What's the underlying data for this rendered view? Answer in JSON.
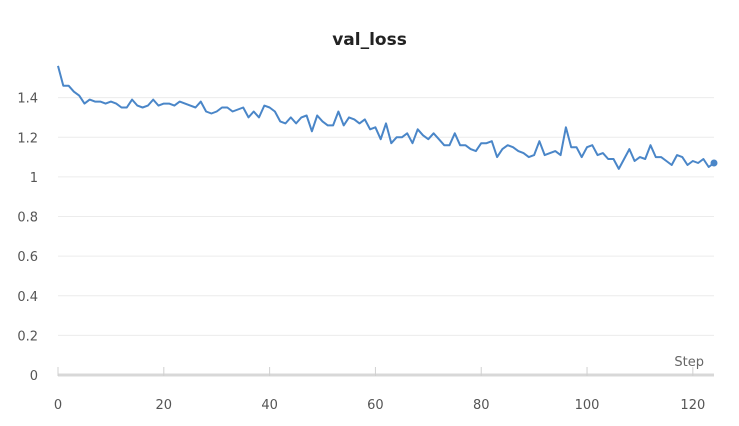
{
  "chart_data": {
    "type": "line",
    "title": "val_loss",
    "xlabel": "Step",
    "ylabel": "",
    "xlim": [
      0,
      124
    ],
    "ylim": [
      0,
      1.6
    ],
    "x_ticks": [
      "0",
      "20",
      "40",
      "60",
      "80",
      "100",
      "120"
    ],
    "y_ticks": [
      "0",
      "0.2",
      "0.4",
      "0.6",
      "0.8",
      "1",
      "1.2",
      "1.4"
    ],
    "x_tick_values": [
      0,
      20,
      40,
      60,
      80,
      100,
      120
    ],
    "y_tick_values": [
      0,
      0.2,
      0.4,
      0.6,
      0.8,
      1.0,
      1.2,
      1.4
    ],
    "grid": true,
    "series": [
      {
        "color": "#4a86c8",
        "x": [
          0,
          1,
          2,
          3,
          4,
          5,
          6,
          7,
          8,
          9,
          10,
          11,
          12,
          13,
          14,
          15,
          16,
          17,
          18,
          19,
          20,
          21,
          22,
          23,
          24,
          25,
          26,
          27,
          28,
          29,
          30,
          31,
          32,
          33,
          34,
          35,
          36,
          37,
          38,
          39,
          40,
          41,
          42,
          43,
          44,
          45,
          46,
          47,
          48,
          49,
          50,
          51,
          52,
          53,
          54,
          55,
          56,
          57,
          58,
          59,
          60,
          61,
          62,
          63,
          64,
          65,
          66,
          67,
          68,
          69,
          70,
          71,
          72,
          73,
          74,
          75,
          76,
          77,
          78,
          79,
          80,
          81,
          82,
          83,
          84,
          85,
          86,
          87,
          88,
          89,
          90,
          91,
          92,
          93,
          94,
          95,
          96,
          97,
          98,
          99,
          100,
          101,
          102,
          103,
          104,
          105,
          106,
          107,
          108,
          109,
          110,
          111,
          112,
          113,
          114,
          115,
          116,
          117,
          118,
          119,
          120,
          121,
          122,
          123,
          124
        ],
        "y": [
          1.56,
          1.46,
          1.46,
          1.43,
          1.41,
          1.37,
          1.39,
          1.38,
          1.38,
          1.37,
          1.38,
          1.37,
          1.35,
          1.35,
          1.39,
          1.36,
          1.35,
          1.36,
          1.39,
          1.36,
          1.37,
          1.37,
          1.36,
          1.38,
          1.37,
          1.36,
          1.35,
          1.38,
          1.33,
          1.32,
          1.33,
          1.35,
          1.35,
          1.33,
          1.34,
          1.35,
          1.3,
          1.33,
          1.3,
          1.36,
          1.35,
          1.33,
          1.28,
          1.27,
          1.3,
          1.27,
          1.3,
          1.31,
          1.23,
          1.31,
          1.28,
          1.26,
          1.26,
          1.33,
          1.26,
          1.3,
          1.29,
          1.27,
          1.29,
          1.24,
          1.25,
          1.19,
          1.27,
          1.17,
          1.2,
          1.2,
          1.22,
          1.17,
          1.24,
          1.21,
          1.19,
          1.22,
          1.19,
          1.16,
          1.16,
          1.22,
          1.16,
          1.16,
          1.14,
          1.13,
          1.17,
          1.17,
          1.18,
          1.1,
          1.14,
          1.16,
          1.15,
          1.13,
          1.12,
          1.1,
          1.11,
          1.18,
          1.11,
          1.12,
          1.13,
          1.11,
          1.25,
          1.15,
          1.15,
          1.1,
          1.15,
          1.16,
          1.11,
          1.12,
          1.09,
          1.09,
          1.04,
          1.09,
          1.14,
          1.08,
          1.1,
          1.09,
          1.16,
          1.1,
          1.1,
          1.08,
          1.06,
          1.11,
          1.1,
          1.06,
          1.08,
          1.07,
          1.09,
          1.05,
          1.07
        ]
      }
    ]
  }
}
